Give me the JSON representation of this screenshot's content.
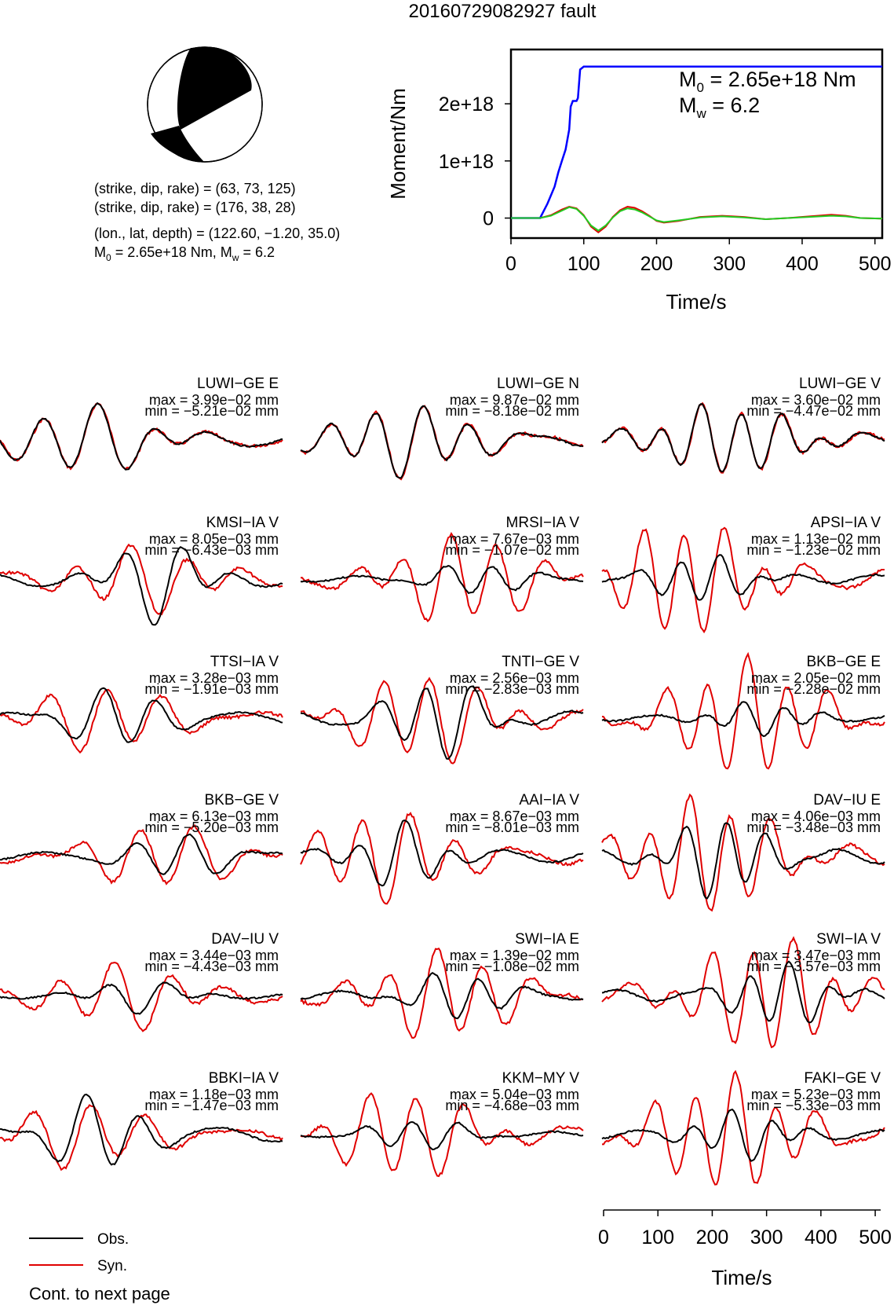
{
  "page": {
    "title": "20160729082927 fault",
    "footer": "Cont. to next page"
  },
  "mechanism": {
    "lines": [
      "(strike, dip, rake) = (63, 73, 125)",
      "(strike, dip, rake) = (176, 38, 28)",
      "(lon., lat, depth) = (122.60, −1.20, 35.0)"
    ],
    "m0_label_prefix": "M",
    "m0_sub": "0",
    "m0_text": " = 2.65e+18 Nm, M",
    "mw_sub": "w",
    "mw_text": " = 6.2"
  },
  "colors": {
    "obs": "#000000",
    "syn": "#e00000",
    "moment": "#0000ff",
    "green": "#22cc22"
  },
  "legend": {
    "obs": "Obs.",
    "syn": "Syn."
  },
  "chart_data": [
    {
      "type": "line",
      "title": "",
      "ylabel": "Moment/Nm",
      "xlabel": "Time/s",
      "xlim": [
        0,
        510
      ],
      "ylim": [
        -3.5e+17,
        2.95e+18
      ],
      "x_ticks": [
        0,
        100,
        200,
        300,
        400,
        500
      ],
      "y_ticks": [
        0,
        1e+18,
        2e+18
      ],
      "y_tick_labels": [
        "0",
        "1e+18",
        "2e+18"
      ],
      "annotation_m0": "M",
      "annotation_m0_sub": "0",
      "annotation_m0_val": " = 2.65e+18 Nm",
      "annotation_mw": "M",
      "annotation_mw_sub": "w",
      "annotation_mw_val": " = 6.2",
      "series": [
        {
          "color": "#0000ff",
          "x": [
            0,
            40,
            50,
            60,
            65,
            70,
            75,
            80,
            82,
            85,
            90,
            92,
            95,
            100,
            105,
            510
          ],
          "y": [
            0,
            0,
            2.5e+17,
            5.5e+17,
            8e+17,
            1e+18,
            1.2e+18,
            1.55e+18,
            1.95e+18,
            2.05e+18,
            2.05e+18,
            2.1e+18,
            2.6e+18,
            2.65e+18,
            2.65e+18,
            2.65e+18
          ]
        },
        {
          "color": "#e00000",
          "x": [
            0,
            40,
            55,
            70,
            80,
            90,
            100,
            110,
            120,
            130,
            140,
            150,
            160,
            170,
            180,
            190,
            200,
            210,
            230,
            260,
            290,
            320,
            350,
            380,
            410,
            440,
            460,
            480,
            510
          ],
          "y": [
            0,
            0,
            5e+16,
            1.5e+17,
            2e+17,
            1.7e+17,
            5e+16,
            -1.5e+17,
            -2.5e+17,
            -1.5e+17,
            2e+16,
            1.4e+17,
            2e+17,
            1.8e+17,
            1.2e+17,
            4e+16,
            -5e+16,
            -8e+16,
            -5e+16,
            2e+16,
            4e+16,
            2e+16,
            -2e+16,
            0.0,
            3e+16,
            6e+16,
            4e+16,
            0.0,
            -1e+16
          ]
        },
        {
          "color": "#22cc22",
          "x": [
            0,
            40,
            55,
            70,
            80,
            90,
            100,
            110,
            120,
            130,
            140,
            150,
            160,
            170,
            180,
            190,
            200,
            210,
            230,
            260,
            290,
            320,
            350,
            380,
            410,
            440,
            460,
            480,
            510
          ],
          "y": [
            0,
            0,
            4e+16,
            1.3e+17,
            1.9e+17,
            1.6e+17,
            4e+16,
            -1.3e+17,
            -2.2e+17,
            -1.3e+17,
            1e+16,
            1.2e+17,
            1.7e+17,
            1.5e+17,
            1e+17,
            3e+16,
            -4e+16,
            -7e+16,
            -4e+16,
            1e+16,
            3e+16,
            1e+16,
            -2e+16,
            0.0,
            2e+16,
            4e+16,
            3e+16,
            0.0,
            -1e+16
          ]
        }
      ]
    },
    {
      "type": "line",
      "title": "",
      "xlabel": "Time/s",
      "xlim": [
        0,
        510
      ],
      "x_ticks": [
        0,
        100,
        200,
        300,
        400,
        500
      ],
      "stations": [
        {
          "name": "LUWI−GE E",
          "max": "max = 3.99e−02 mm",
          "min": "min = −5.21e−02 mm"
        },
        {
          "name": "LUWI−GE N",
          "max": "max = 9.87e−02 mm",
          "min": "min = −8.18e−02 mm"
        },
        {
          "name": "LUWI−GE V",
          "max": "max = 3.60e−02 mm",
          "min": "min = −4.47e−02 mm"
        },
        {
          "name": "KMSI−IA V",
          "max": "max = 8.05e−03 mm",
          "min": "min = −6.43e−03 mm"
        },
        {
          "name": "MRSI−IA V",
          "max": "max = 7.67e−03 mm",
          "min": "min = −1.07e−02 mm"
        },
        {
          "name": "APSI−IA V",
          "max": "max = 1.13e−02 mm",
          "min": "min = −1.23e−02 mm"
        },
        {
          "name": "TTSI−IA V",
          "max": "max = 3.28e−03 mm",
          "min": "min = −1.91e−03 mm"
        },
        {
          "name": "TNTI−GE V",
          "max": "max = 2.56e−03 mm",
          "min": "min = −2.83e−03 mm"
        },
        {
          "name": "BKB−GE E",
          "max": "max = 2.05e−02 mm",
          "min": "min = −2.28e−02 mm"
        },
        {
          "name": "BKB−GE V",
          "max": "max = 6.13e−03 mm",
          "min": "min = −5.20e−03 mm"
        },
        {
          "name": "AAI−IA V",
          "max": "max = 8.67e−03 mm",
          "min": "min = −8.01e−03 mm"
        },
        {
          "name": "DAV−IU E",
          "max": "max = 4.06e−03 mm",
          "min": "min = −3.48e−03 mm"
        },
        {
          "name": "DAV−IU V",
          "max": "max = 3.44e−03 mm",
          "min": "min = −4.43e−03 mm"
        },
        {
          "name": "SWI−IA E",
          "max": "max = 1.39e−02 mm",
          "min": "min = −1.08e−02 mm"
        },
        {
          "name": "SWI−IA V",
          "max": "max = 3.47e−03 mm",
          "min": "min = −3.57e−03 mm"
        },
        {
          "name": "BBKI−IA V",
          "max": "max = 1.18e−03 mm",
          "min": "min = −1.47e−03 mm"
        },
        {
          "name": "KKM−MY V",
          "max": "max = 5.04e−03 mm",
          "min": "min = −4.68e−03 mm"
        },
        {
          "name": "FAKI−GE V",
          "max": "max = 5.23e−03 mm",
          "min": "min = −5.33e−03 mm"
        }
      ]
    }
  ]
}
